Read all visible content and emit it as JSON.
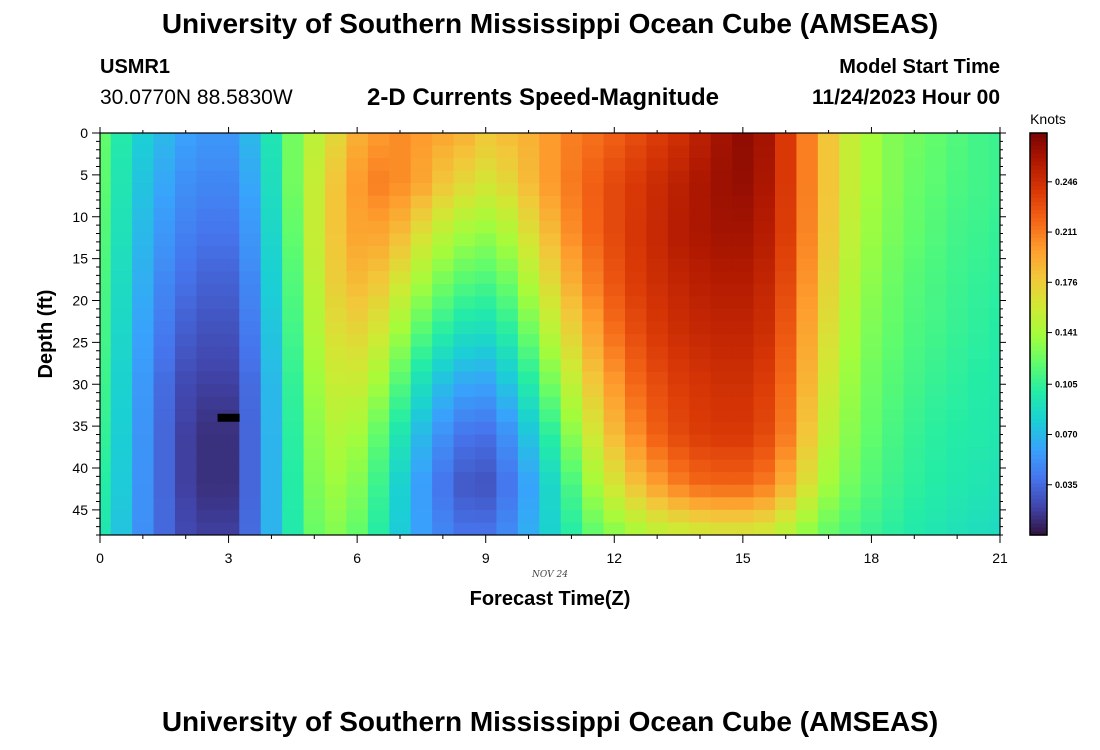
{
  "header": {
    "title": "University of Southern Mississippi Ocean Cube (AMSEAS)",
    "station_id": "USMR1",
    "station_coords": "30.0770N  88.5830W",
    "subtitle": "2-D Currents Speed-Magnitude",
    "model_start_label": "Model Start Time",
    "model_start_value": "11/24/2023 Hour 00"
  },
  "footer": {
    "title": "University of Southern Mississippi Ocean Cube (AMSEAS)"
  },
  "chart_data": {
    "type": "heatmap",
    "title": "2-D Currents Speed-Magnitude",
    "xlabel": "Forecast Time(Z)",
    "ylabel": "Depth (ft)",
    "x_date_label": "NOV 24",
    "xlim": [
      0,
      21
    ],
    "ylim": [
      0,
      48
    ],
    "y_inverted": true,
    "x_ticks": [
      0,
      3,
      6,
      9,
      12,
      15,
      18,
      21
    ],
    "y_ticks": [
      0,
      5,
      10,
      15,
      20,
      25,
      30,
      35,
      40,
      45
    ],
    "colorbar": {
      "label": "Knots",
      "range": [
        0.0,
        0.28
      ],
      "ticks": [
        "0.035",
        "0.070",
        "0.105",
        "0.141",
        "0.176",
        "0.211",
        "0.246"
      ],
      "colormap": [
        "#30123b",
        "#4145ab",
        "#4675ed",
        "#39a2fc",
        "#1bcfd4",
        "#24eca6",
        "#61fc6c",
        "#a4fc3b",
        "#d1e834",
        "#f3c63a",
        "#fe9b2d",
        "#f36315",
        "#d93806",
        "#b11901",
        "#7a0403"
      ]
    },
    "x_hours": [
      0,
      0.5,
      1,
      1.5,
      2,
      2.5,
      3,
      3.5,
      4,
      4.5,
      5,
      5.5,
      6,
      6.5,
      7,
      7.5,
      8,
      8.5,
      9,
      9.5,
      10,
      10.5,
      11,
      11.5,
      12,
      12.5,
      13,
      13.5,
      14,
      14.5,
      15,
      15.5,
      16,
      16.5,
      17,
      17.5,
      18,
      18.5,
      19,
      19.5,
      20,
      20.5,
      21
    ],
    "depths_ft": [
      0,
      6,
      12,
      18,
      24,
      30,
      36,
      42,
      48
    ],
    "speed_knots": [
      [
        0.12,
        0.098,
        0.08,
        0.07,
        0.06,
        0.055,
        0.055,
        0.07,
        0.095,
        0.125,
        0.15,
        0.17,
        0.19,
        0.2,
        0.205,
        0.2,
        0.195,
        0.19,
        0.18,
        0.185,
        0.19,
        0.2,
        0.21,
        0.215,
        0.222,
        0.23,
        0.238,
        0.245,
        0.255,
        0.265,
        0.272,
        0.265,
        0.24,
        0.21,
        0.18,
        0.155,
        0.14,
        0.13,
        0.125,
        0.12,
        0.115,
        0.11,
        0.108
      ],
      [
        0.118,
        0.095,
        0.075,
        0.062,
        0.052,
        0.048,
        0.048,
        0.062,
        0.09,
        0.125,
        0.155,
        0.18,
        0.2,
        0.21,
        0.205,
        0.195,
        0.18,
        0.17,
        0.162,
        0.17,
        0.185,
        0.2,
        0.212,
        0.222,
        0.232,
        0.24,
        0.248,
        0.255,
        0.262,
        0.268,
        0.27,
        0.262,
        0.24,
        0.21,
        0.18,
        0.155,
        0.14,
        0.13,
        0.122,
        0.118,
        0.113,
        0.11,
        0.108
      ],
      [
        0.115,
        0.092,
        0.07,
        0.055,
        0.045,
        0.04,
        0.04,
        0.055,
        0.085,
        0.12,
        0.155,
        0.18,
        0.195,
        0.195,
        0.185,
        0.165,
        0.15,
        0.14,
        0.135,
        0.145,
        0.165,
        0.185,
        0.205,
        0.22,
        0.232,
        0.242,
        0.25,
        0.258,
        0.262,
        0.265,
        0.265,
        0.258,
        0.238,
        0.208,
        0.178,
        0.152,
        0.137,
        0.127,
        0.12,
        0.115,
        0.11,
        0.108,
        0.105
      ],
      [
        0.112,
        0.088,
        0.065,
        0.048,
        0.038,
        0.032,
        0.032,
        0.048,
        0.08,
        0.115,
        0.15,
        0.175,
        0.185,
        0.178,
        0.16,
        0.14,
        0.125,
        0.115,
        0.112,
        0.122,
        0.145,
        0.168,
        0.19,
        0.21,
        0.226,
        0.238,
        0.246,
        0.252,
        0.256,
        0.258,
        0.258,
        0.252,
        0.232,
        0.202,
        0.172,
        0.148,
        0.133,
        0.123,
        0.116,
        0.112,
        0.108,
        0.105,
        0.103
      ],
      [
        0.11,
        0.085,
        0.06,
        0.042,
        0.03,
        0.025,
        0.025,
        0.042,
        0.075,
        0.11,
        0.145,
        0.165,
        0.17,
        0.16,
        0.138,
        0.115,
        0.1,
        0.09,
        0.088,
        0.1,
        0.122,
        0.148,
        0.172,
        0.195,
        0.215,
        0.23,
        0.24,
        0.246,
        0.25,
        0.252,
        0.252,
        0.246,
        0.225,
        0.195,
        0.165,
        0.142,
        0.128,
        0.12,
        0.113,
        0.11,
        0.106,
        0.103,
        0.1
      ],
      [
        0.108,
        0.082,
        0.056,
        0.036,
        0.022,
        0.018,
        0.018,
        0.036,
        0.07,
        0.105,
        0.138,
        0.155,
        0.155,
        0.14,
        0.115,
        0.09,
        0.072,
        0.062,
        0.06,
        0.075,
        0.098,
        0.125,
        0.152,
        0.178,
        0.2,
        0.218,
        0.23,
        0.238,
        0.242,
        0.245,
        0.245,
        0.238,
        0.218,
        0.188,
        0.158,
        0.137,
        0.124,
        0.116,
        0.11,
        0.106,
        0.103,
        0.1,
        0.098
      ],
      [
        0.105,
        0.08,
        0.054,
        0.034,
        0.018,
        0.012,
        0.012,
        0.034,
        0.068,
        0.102,
        0.132,
        0.145,
        0.14,
        0.12,
        0.095,
        0.07,
        0.052,
        0.04,
        0.038,
        0.052,
        0.075,
        0.102,
        0.132,
        0.16,
        0.185,
        0.205,
        0.222,
        0.232,
        0.238,
        0.24,
        0.24,
        0.232,
        0.212,
        0.18,
        0.15,
        0.132,
        0.12,
        0.112,
        0.106,
        0.102,
        0.1,
        0.098,
        0.096
      ],
      [
        0.1,
        0.078,
        0.053,
        0.034,
        0.018,
        0.012,
        0.012,
        0.034,
        0.068,
        0.1,
        0.128,
        0.138,
        0.13,
        0.108,
        0.082,
        0.058,
        0.04,
        0.028,
        0.026,
        0.04,
        0.06,
        0.085,
        0.112,
        0.14,
        0.162,
        0.182,
        0.198,
        0.21,
        0.218,
        0.22,
        0.22,
        0.212,
        0.192,
        0.165,
        0.14,
        0.125,
        0.115,
        0.108,
        0.103,
        0.1,
        0.097,
        0.095,
        0.093
      ],
      [
        0.095,
        0.075,
        0.052,
        0.035,
        0.022,
        0.018,
        0.018,
        0.036,
        0.068,
        0.098,
        0.122,
        0.13,
        0.12,
        0.1,
        0.078,
        0.06,
        0.048,
        0.04,
        0.04,
        0.05,
        0.065,
        0.082,
        0.1,
        0.118,
        0.13,
        0.14,
        0.148,
        0.152,
        0.155,
        0.158,
        0.158,
        0.155,
        0.145,
        0.132,
        0.12,
        0.112,
        0.106,
        0.102,
        0.098,
        0.095,
        0.092,
        0.09,
        0.088
      ]
    ],
    "marker": {
      "hour": 3,
      "depth_ft": 34,
      "shape": "dash"
    }
  }
}
